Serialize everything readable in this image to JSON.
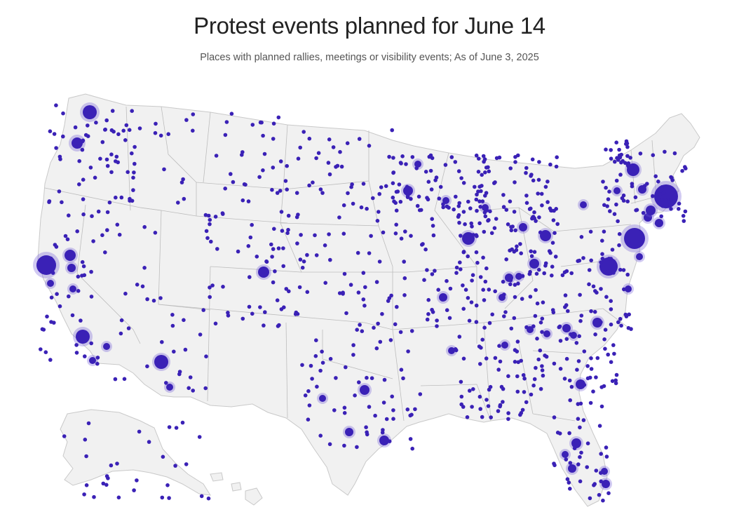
{
  "title": "Protest events planned for June 14",
  "subtitle": "Places with planned rallies, meetings or visibility events; As of June 3, 2025",
  "colors": {
    "dot": "#3a21b6",
    "halo": "#6f5ad8",
    "land": "#f1f1f1",
    "border": "#bdbdbd"
  }
}
